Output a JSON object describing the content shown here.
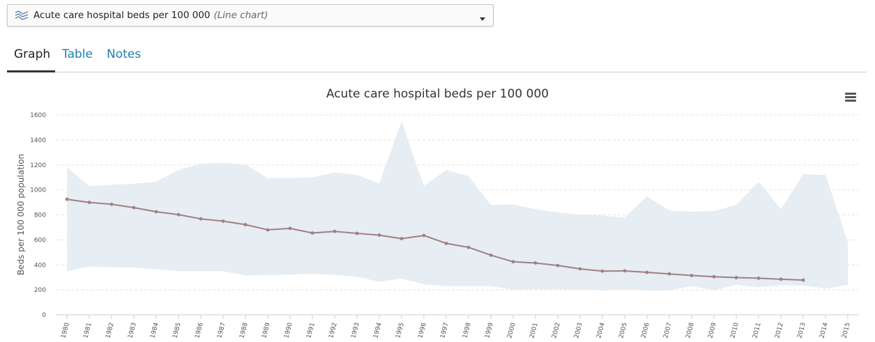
{
  "selector": {
    "title": "Acute care hospital beds per 100 000",
    "type": "(Line chart)",
    "icon": "line-chart-icon"
  },
  "tabs": [
    {
      "label": "Graph",
      "active": true
    },
    {
      "label": "Table",
      "active": false
    },
    {
      "label": "Notes",
      "active": false
    }
  ],
  "colors": {
    "line": "#a07f82",
    "band": "#e6edf3",
    "link": "#1a7fb5"
  },
  "chart_data": {
    "type": "line",
    "title": "Acute care hospital beds per 100 000",
    "ylabel": "Beds per 100 000 population",
    "xlabel": "",
    "ylim": [
      0,
      1600
    ],
    "yticks": [
      0,
      200,
      400,
      600,
      800,
      1000,
      1200,
      1400,
      1600
    ],
    "grid": true,
    "x": [
      "1980",
      "1981",
      "1982",
      "1983",
      "1984",
      "1985",
      "1986",
      "1987",
      "1988",
      "1989",
      "1990",
      "1991",
      "1992",
      "1993",
      "1994",
      "1995",
      "1996",
      "1997",
      "1998",
      "1999",
      "2000",
      "2001",
      "2002",
      "2003",
      "2004",
      "2005",
      "2006",
      "2007",
      "2008",
      "2009",
      "2010",
      "2011",
      "2012",
      "2013",
      "2014",
      "2015"
    ],
    "series": [
      {
        "values": [
          925,
          900,
          885,
          858,
          825,
          802,
          768,
          750,
          722,
          680,
          692,
          655,
          668,
          652,
          638,
          610,
          635,
          572,
          540,
          478,
          425,
          415,
          395,
          368,
          350,
          352,
          340,
          328,
          315,
          305,
          298,
          293,
          285,
          278,
          null,
          null
        ]
      }
    ],
    "range": {
      "upper": [
        1180,
        1030,
        1040,
        1050,
        1065,
        1160,
        1210,
        1215,
        1205,
        1095,
        1095,
        1100,
        1140,
        1120,
        1050,
        1550,
        1030,
        1160,
        1110,
        880,
        885,
        845,
        820,
        800,
        795,
        780,
        950,
        835,
        825,
        830,
        880,
        1065,
        845,
        1125,
        1120,
        580
      ],
      "lower": [
        350,
        385,
        380,
        378,
        365,
        350,
        350,
        350,
        315,
        318,
        322,
        328,
        320,
        305,
        265,
        290,
        245,
        230,
        230,
        230,
        200,
        205,
        205,
        200,
        195,
        200,
        195,
        195,
        230,
        195,
        240,
        220,
        235,
        235,
        210,
        240
      ]
    }
  }
}
